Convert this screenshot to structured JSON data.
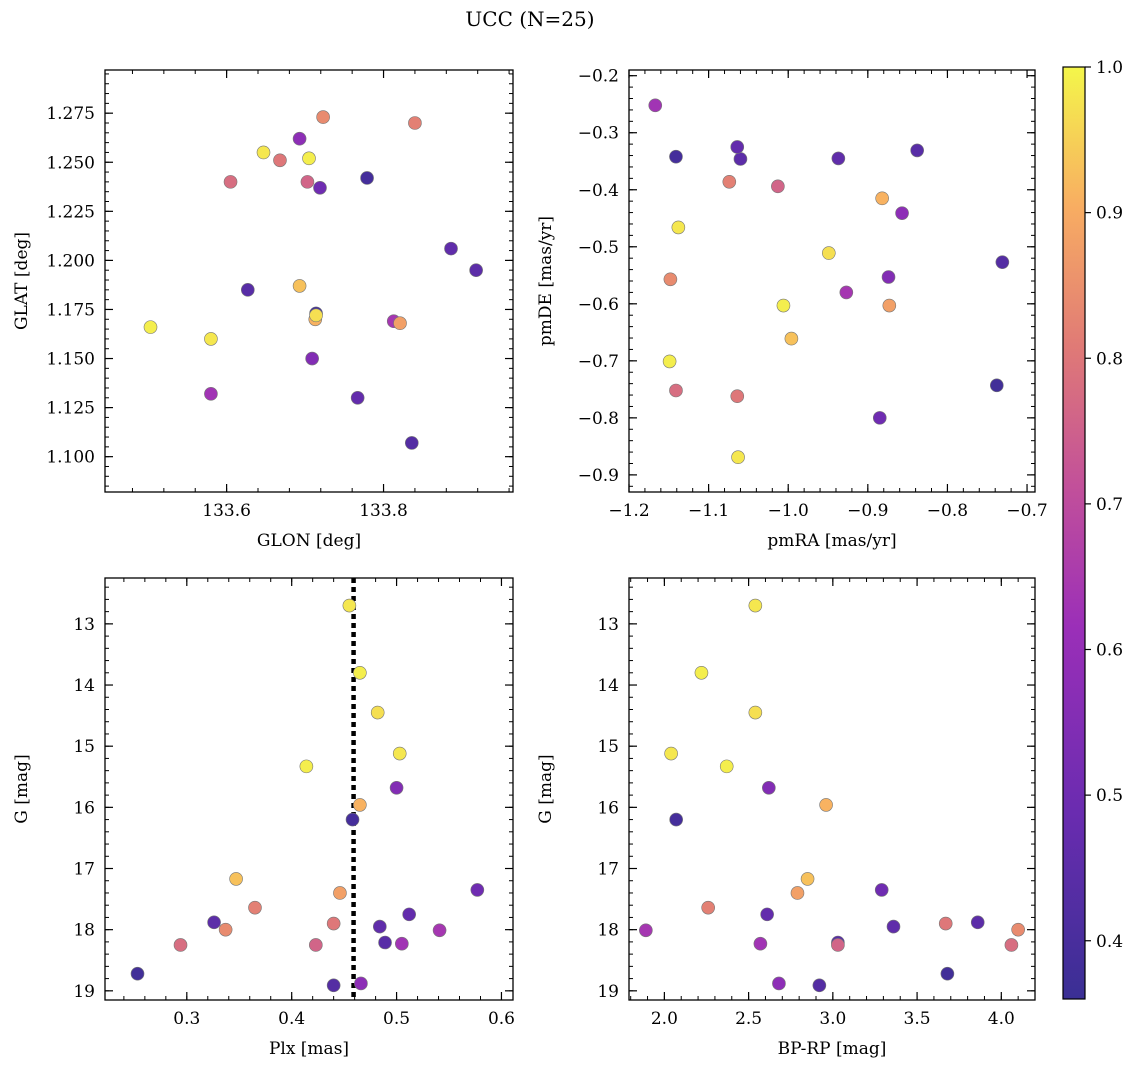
{
  "figure": {
    "title": "UCC (N=25)"
  },
  "colorbar": {
    "colormap": "plasma",
    "range": [
      0.36,
      1.0
    ],
    "ticks": [
      "0.4",
      "0.5",
      "0.6",
      "0.7",
      "0.8",
      "0.9",
      "1.0"
    ],
    "tick_values": [
      0.4,
      0.5,
      0.6,
      0.7,
      0.8,
      0.9,
      1.0
    ]
  },
  "members": [
    {
      "glon": 133.503,
      "glat": 1.166,
      "pmra": -1.149,
      "pmde": -0.701,
      "plx": 0.414,
      "g": 15.33,
      "bprp": 2.37,
      "prob": 0.99
    },
    {
      "glon": 133.58,
      "glat": 1.16,
      "pmra": -1.138,
      "pmde": -0.466,
      "plx": 0.503,
      "g": 15.12,
      "bprp": 2.04,
      "prob": 0.98
    },
    {
      "glon": 133.647,
      "glat": 1.255,
      "pmra": -1.063,
      "pmde": -0.869,
      "plx": 0.455,
      "g": 12.7,
      "bprp": 2.54,
      "prob": 0.98
    },
    {
      "glon": 133.705,
      "glat": 1.252,
      "pmra": -1.006,
      "pmde": -0.603,
      "plx": 0.465,
      "g": 13.8,
      "bprp": 2.22,
      "prob": 0.99
    },
    {
      "glon": 133.714,
      "glat": 1.172,
      "pmra": -0.949,
      "pmde": -0.511,
      "plx": 0.482,
      "g": 14.45,
      "bprp": 2.54,
      "prob": 0.97
    },
    {
      "glon": 133.693,
      "glat": 1.187,
      "pmra": -0.996,
      "pmde": -0.661,
      "plx": 0.347,
      "g": 17.17,
      "bprp": 2.85,
      "prob": 0.93
    },
    {
      "glon": 133.713,
      "glat": 1.17,
      "pmra": -0.882,
      "pmde": -0.415,
      "plx": 0.465,
      "g": 15.96,
      "bprp": 2.96,
      "prob": 0.91
    },
    {
      "glon": 133.821,
      "glat": 1.168,
      "pmra": -0.873,
      "pmde": -0.603,
      "plx": 0.446,
      "g": 17.4,
      "bprp": 2.79,
      "prob": 0.88
    },
    {
      "glon": 133.723,
      "glat": 1.273,
      "pmra": -1.148,
      "pmde": -0.557,
      "plx": 0.337,
      "g": 18.0,
      "bprp": 4.1,
      "prob": 0.84
    },
    {
      "glon": 133.84,
      "glat": 1.27,
      "pmra": -1.074,
      "pmde": -0.386,
      "plx": 0.365,
      "g": 17.64,
      "bprp": 2.26,
      "prob": 0.82
    },
    {
      "glon": 133.668,
      "glat": 1.251,
      "pmra": -1.064,
      "pmde": -0.762,
      "plx": 0.44,
      "g": 17.9,
      "bprp": 3.67,
      "prob": 0.8
    },
    {
      "glon": 133.605,
      "glat": 1.24,
      "pmra": -1.141,
      "pmde": -0.752,
      "plx": 0.294,
      "g": 18.25,
      "bprp": 4.06,
      "prob": 0.78
    },
    {
      "glon": 133.703,
      "glat": 1.24,
      "pmra": -1.013,
      "pmde": -0.394,
      "plx": 0.423,
      "g": 18.25,
      "bprp": 3.03,
      "prob": 0.76
    },
    {
      "glon": 133.813,
      "glat": 1.169,
      "pmra": -0.927,
      "pmde": -0.58,
      "plx": 0.541,
      "g": 18.01,
      "bprp": 1.89,
      "prob": 0.64
    },
    {
      "glon": 133.58,
      "glat": 1.132,
      "pmra": -1.167,
      "pmde": -0.252,
      "plx": 0.505,
      "g": 18.23,
      "bprp": 2.57,
      "prob": 0.63
    },
    {
      "glon": 133.693,
      "glat": 1.262,
      "pmra": -0.857,
      "pmde": -0.441,
      "plx": 0.466,
      "g": 18.88,
      "bprp": 2.68,
      "prob": 0.58
    },
    {
      "glon": 133.709,
      "glat": 1.15,
      "pmra": -0.874,
      "pmde": -0.553,
      "plx": 0.5,
      "g": 15.68,
      "bprp": 2.62,
      "prob": 0.55
    },
    {
      "glon": 133.719,
      "glat": 1.237,
      "pmra": -0.885,
      "pmde": -0.8,
      "plx": 0.577,
      "g": 17.35,
      "bprp": 3.29,
      "prob": 0.5
    },
    {
      "glon": 133.767,
      "glat": 1.13,
      "pmra": -1.064,
      "pmde": -0.325,
      "plx": 0.512,
      "g": 17.75,
      "bprp": 2.61,
      "prob": 0.47
    },
    {
      "glon": 133.886,
      "glat": 1.206,
      "pmra": -0.937,
      "pmde": -0.345,
      "plx": 0.484,
      "g": 17.95,
      "bprp": 3.36,
      "prob": 0.46
    },
    {
      "glon": 133.918,
      "glat": 1.195,
      "pmra": -1.06,
      "pmde": -0.346,
      "plx": 0.326,
      "g": 17.88,
      "bprp": 3.86,
      "prob": 0.45
    },
    {
      "glon": 133.627,
      "glat": 1.185,
      "pmra": -0.838,
      "pmde": -0.331,
      "plx": 0.489,
      "g": 18.21,
      "bprp": 3.03,
      "prob": 0.44
    },
    {
      "glon": 133.836,
      "glat": 1.107,
      "pmra": -0.731,
      "pmde": -0.527,
      "plx": 0.44,
      "g": 18.91,
      "bprp": 2.92,
      "prob": 0.43
    },
    {
      "glon": 133.779,
      "glat": 1.242,
      "pmra": -1.141,
      "pmde": -0.342,
      "plx": 0.458,
      "g": 16.2,
      "bprp": 2.07,
      "prob": 0.39
    },
    {
      "glon": 133.714,
      "glat": 1.173,
      "pmra": -0.738,
      "pmde": -0.743,
      "plx": 0.253,
      "g": 18.72,
      "bprp": 3.68,
      "prob": 0.38
    }
  ],
  "chart_data": [
    {
      "type": "scatter",
      "x_key": "glon",
      "y_key": "glat",
      "xlabel": "GLON [deg]",
      "ylabel": "GLAT [deg]",
      "xlim": [
        133.445,
        133.965
      ],
      "ylim": [
        1.082,
        1.297
      ],
      "xticks": [
        133.6,
        133.8
      ],
      "xtick_labels": [
        "133.6",
        "133.8"
      ],
      "yticks": [
        1.1,
        1.125,
        1.15,
        1.175,
        1.2,
        1.225,
        1.25,
        1.275
      ],
      "ytick_labels": [
        "1.100",
        "1.125",
        "1.150",
        "1.175",
        "1.200",
        "1.225",
        "1.250",
        "1.275"
      ],
      "yinverted": false
    },
    {
      "type": "scatter",
      "x_key": "pmra",
      "y_key": "pmde",
      "xlabel": "pmRA [mas/yr]",
      "ylabel": "pmDE [mas/yr]",
      "xlim": [
        -1.2,
        -0.69
      ],
      "ylim": [
        -0.93,
        -0.19
      ],
      "xticks": [
        -1.2,
        -1.1,
        -1.0,
        -0.9,
        -0.8,
        -0.7
      ],
      "xtick_labels": [
        "−1.2",
        "−1.1",
        "−1.0",
        "−0.9",
        "−0.8",
        "−0.7"
      ],
      "yticks": [
        -0.9,
        -0.8,
        -0.7,
        -0.6,
        -0.5,
        -0.4,
        -0.3,
        -0.2
      ],
      "ytick_labels": [
        "−0.9",
        "−0.8",
        "−0.7",
        "−0.6",
        "−0.5",
        "−0.4",
        "−0.3",
        "−0.2"
      ],
      "yinverted": false
    },
    {
      "type": "scatter",
      "x_key": "plx",
      "y_key": "g",
      "xlabel": "Plx [mas]",
      "ylabel": "G [mag]",
      "xlim": [
        0.222,
        0.611
      ],
      "ylim": [
        12.25,
        19.15
      ],
      "xticks": [
        0.3,
        0.4,
        0.5,
        0.6
      ],
      "xtick_labels": [
        "0.3",
        "0.4",
        "0.5",
        "0.6"
      ],
      "yticks": [
        13,
        14,
        15,
        16,
        17,
        18,
        19
      ],
      "ytick_labels": [
        "13",
        "14",
        "15",
        "16",
        "17",
        "18",
        "19"
      ],
      "yinverted": true,
      "vline": 0.459
    },
    {
      "type": "scatter",
      "x_key": "bprp",
      "y_key": "g",
      "xlabel": "BP-RP [mag]",
      "ylabel": "G [mag]",
      "xlim": [
        1.79,
        4.2
      ],
      "ylim": [
        12.25,
        19.15
      ],
      "xticks": [
        2.0,
        2.5,
        3.0,
        3.5,
        4.0
      ],
      "xtick_labels": [
        "2.0",
        "2.5",
        "3.0",
        "3.5",
        "4.0"
      ],
      "yticks": [
        13,
        14,
        15,
        16,
        17,
        18,
        19
      ],
      "ytick_labels": [
        "13",
        "14",
        "15",
        "16",
        "17",
        "18",
        "19"
      ],
      "yinverted": true
    }
  ]
}
